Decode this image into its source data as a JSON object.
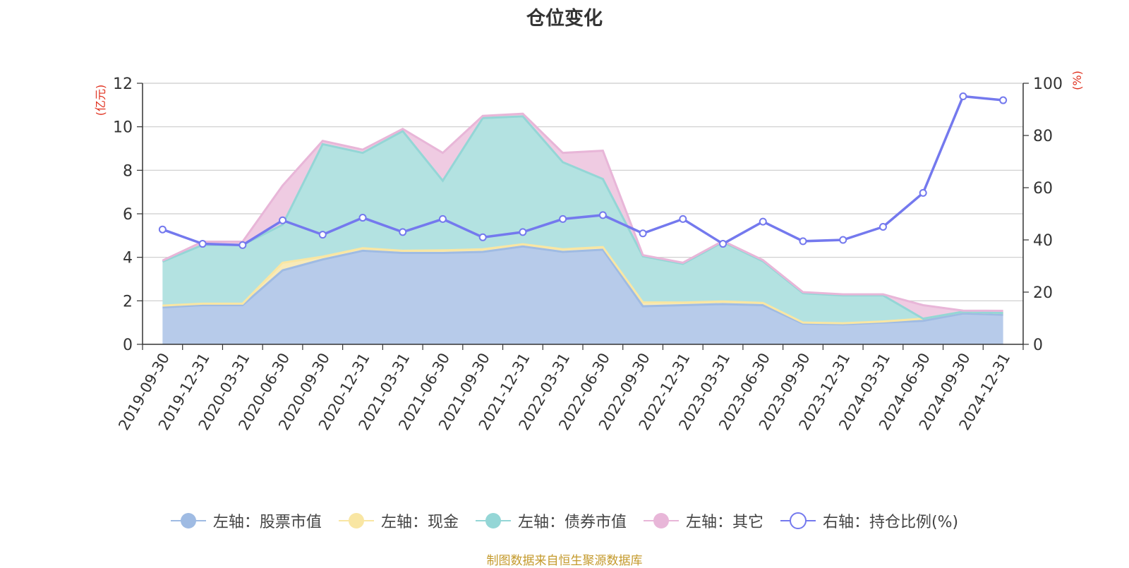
{
  "chart_data": {
    "type": "area",
    "title": "仓位变化",
    "left_axis_label": "(亿元)",
    "right_axis_label": "(%)",
    "left_ylim": [
      0,
      12
    ],
    "left_ticks": [
      "0",
      "2",
      "4",
      "6",
      "8",
      "10",
      "12"
    ],
    "right_ylim": [
      0,
      100
    ],
    "right_ticks": [
      "0",
      "20",
      "40",
      "60",
      "80",
      "100"
    ],
    "categories": [
      "2019-09-30",
      "2019-12-31",
      "2020-03-31",
      "2020-06-30",
      "2020-09-30",
      "2020-12-31",
      "2021-03-31",
      "2021-06-30",
      "2021-09-30",
      "2021-12-31",
      "2022-03-31",
      "2022-06-30",
      "2022-09-30",
      "2022-12-31",
      "2023-03-31",
      "2023-06-30",
      "2023-09-30",
      "2023-12-31",
      "2024-03-31",
      "2024-06-30",
      "2024-09-30",
      "2024-12-31"
    ],
    "series": [
      {
        "name": "左轴：股票市值",
        "axis": "left",
        "stack": true,
        "color": "#9fbbe3",
        "fill": "#b7cbea",
        "values": [
          1.7,
          1.8,
          1.8,
          3.4,
          3.9,
          4.3,
          4.2,
          4.2,
          4.25,
          4.5,
          4.25,
          4.35,
          1.75,
          1.8,
          1.85,
          1.8,
          0.95,
          0.92,
          1.0,
          1.08,
          1.42,
          1.36
        ]
      },
      {
        "name": "左轴：现金",
        "axis": "left",
        "stack": true,
        "color": "#f9e6a3",
        "fill": "#f8eab8",
        "values": [
          0.08,
          0.07,
          0.07,
          0.35,
          0.13,
          0.12,
          0.1,
          0.12,
          0.12,
          0.1,
          0.12,
          0.12,
          0.18,
          0.12,
          0.12,
          0.1,
          0.05,
          0.05,
          0.05,
          0.1,
          0.08,
          0.08
        ]
      },
      {
        "name": "左轴：债券市值",
        "axis": "left",
        "stack": true,
        "color": "#94d6d6",
        "fill": "#b3e2e1",
        "values": [
          2.02,
          2.7,
          2.7,
          1.75,
          5.17,
          4.38,
          5.5,
          3.2,
          6.03,
          5.88,
          4.0,
          3.13,
          2.12,
          1.78,
          2.73,
          1.92,
          1.35,
          1.28,
          1.2,
          0.0,
          0.0,
          0.0
        ]
      },
      {
        "name": "左轴：其它",
        "axis": "left",
        "stack": true,
        "color": "#e8b6d8",
        "fill": "#efcbe2",
        "values": [
          0.05,
          0.15,
          0.15,
          1.8,
          0.15,
          0.15,
          0.1,
          1.28,
          0.1,
          0.12,
          0.43,
          1.3,
          0.05,
          0.05,
          0.05,
          0.05,
          0.05,
          0.05,
          0.05,
          0.62,
          0.05,
          0.1
        ]
      },
      {
        "name": "右轴：持仓比例(%)",
        "axis": "right",
        "type": "line",
        "color": "#7479ee",
        "values": [
          44.0,
          38.5,
          38.0,
          47.5,
          42.0,
          48.5,
          43.0,
          48.0,
          41.0,
          43.0,
          48.0,
          49.5,
          42.5,
          48.0,
          38.5,
          47.0,
          39.5,
          40.0,
          45.0,
          58.0,
          95.0,
          93.5
        ]
      }
    ],
    "grid": true,
    "legend_position": "bottom"
  },
  "source_note": "制图数据来自恒生聚源数据库"
}
